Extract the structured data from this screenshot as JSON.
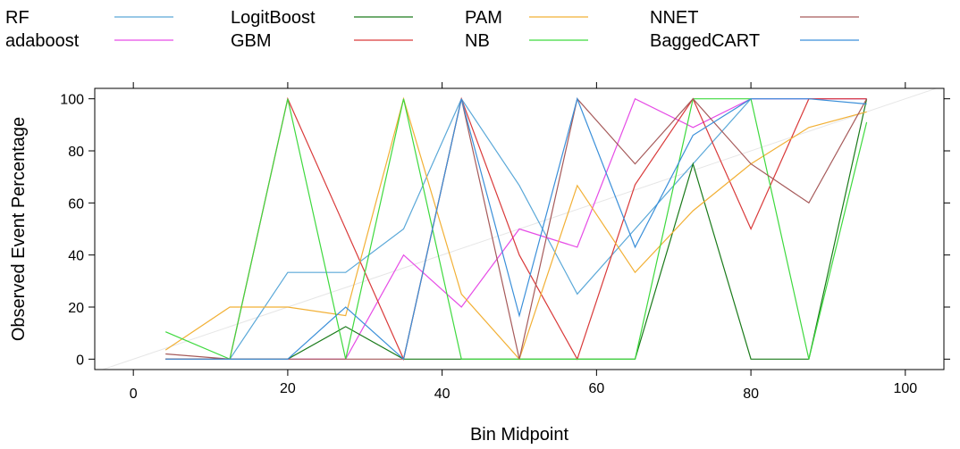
{
  "chart_data": {
    "type": "line",
    "title": "",
    "xlabel": "Bin Midpoint",
    "ylabel": "Observed Event Percentage",
    "xlim": [
      -5,
      105
    ],
    "ylim": [
      -4,
      104
    ],
    "xticks": [
      0,
      20,
      40,
      60,
      80,
      100
    ],
    "yticks": [
      0,
      20,
      40,
      60,
      80,
      100
    ],
    "grid": false,
    "legend_position": "top",
    "reference_line": {
      "x": [
        -5,
        105
      ],
      "y": [
        -5,
        105
      ],
      "color": "#e6e6e6"
    },
    "x": [
      4.17,
      12.5,
      20.0,
      27.5,
      35.0,
      42.5,
      50.0,
      57.5,
      65.0,
      72.5,
      80.0,
      87.5,
      95.0
    ],
    "series": [
      {
        "name": "RF",
        "color": "#5aa8d8",
        "values": [
          0,
          0,
          33.3,
          33.3,
          50,
          100,
          66.7,
          25,
          50,
          75,
          100,
          100,
          100
        ]
      },
      {
        "name": "adaboost",
        "color": "#e64ce6",
        "values": [
          0,
          0,
          0,
          0,
          40,
          20,
          50,
          43,
          100,
          89,
          100,
          100,
          100
        ]
      },
      {
        "name": "LogitBoost",
        "color": "#1a7a1a",
        "values": [
          0,
          0,
          0,
          12.5,
          0,
          0,
          0,
          0,
          0,
          75,
          0,
          0,
          100
        ]
      },
      {
        "name": "GBM",
        "color": "#d93a3a",
        "values": [
          0,
          0,
          100,
          50,
          0,
          100,
          40,
          0,
          67,
          100,
          50,
          100,
          100
        ]
      },
      {
        "name": "PAM",
        "color": "#f2b035",
        "values": [
          3.5,
          20,
          20,
          16.7,
          100,
          25,
          0,
          66.7,
          33.3,
          57,
          75,
          89,
          95
        ]
      },
      {
        "name": "NB",
        "color": "#3ed93e",
        "values": [
          10.5,
          0,
          100,
          0,
          100,
          0,
          0,
          0,
          0,
          100,
          100,
          0,
          91
        ]
      },
      {
        "name": "NNET",
        "color": "#a65a5a",
        "values": [
          2,
          0,
          0,
          0,
          0,
          100,
          0,
          100,
          75,
          100,
          75,
          60,
          100
        ]
      },
      {
        "name": "BaggedCART",
        "color": "#3a8fd9",
        "values": [
          0,
          0,
          0,
          20,
          0,
          100,
          16.7,
          100,
          43,
          86,
          100,
          100,
          98
        ]
      }
    ]
  }
}
